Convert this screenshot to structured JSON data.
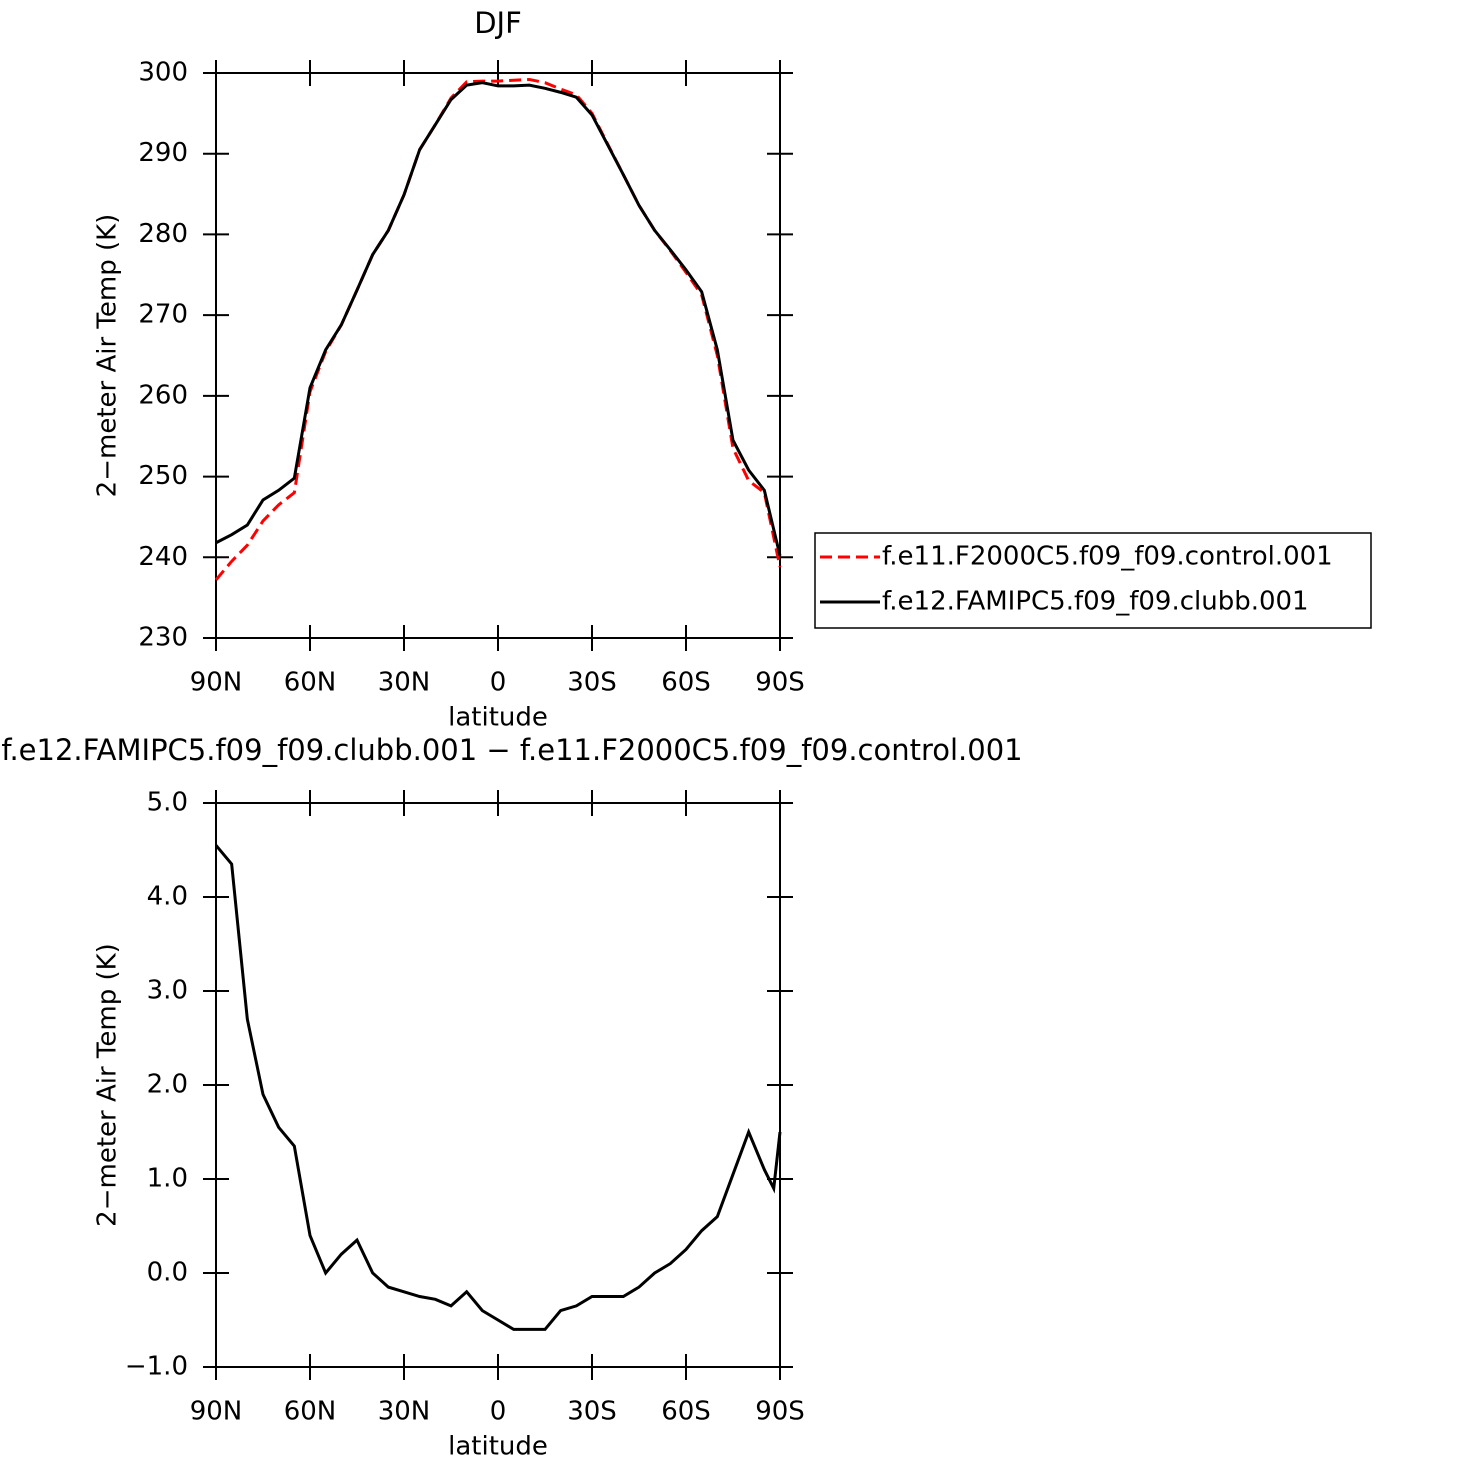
{
  "chart_data": [
    {
      "type": "line",
      "title": "DJF",
      "xlabel": "latitude",
      "ylabel": "2−meter Air Temp (K)",
      "x": [
        90,
        85,
        80,
        75,
        70,
        65,
        60,
        55,
        50,
        45,
        40,
        35,
        30,
        25,
        20,
        15,
        10,
        5,
        0,
        -5,
        -10,
        -15,
        -20,
        -25,
        -30,
        -35,
        -40,
        -45,
        -50,
        -55,
        -60,
        -65,
        -70,
        -75,
        -80,
        -85,
        -90
      ],
      "series": [
        {
          "name": "f.e11.F2000C5.f09_f09.control.001",
          "color": "#ff0000",
          "dash": true,
          "values": [
            237.2,
            239.5,
            241.5,
            244.5,
            246.5,
            248,
            260.5,
            265.5,
            268.8,
            273.1,
            277.5,
            280.5,
            284.9,
            290.5,
            293.6,
            296.9,
            298.9,
            299.0,
            299.0,
            299.1,
            299.2,
            298.8,
            298.0,
            297.3,
            295.0,
            291.2,
            287.4,
            283.6,
            280.5,
            278.0,
            275.3,
            272.5,
            265.0,
            253.5,
            249.5,
            248.0,
            238.8
          ]
        },
        {
          "name": "f.e12.FAMIPC5.f09_f09.clubb.001",
          "color": "#000000",
          "dash": false,
          "values": [
            241.8,
            242.8,
            244.0,
            247.1,
            248.3,
            249.8,
            261.0,
            265.7,
            268.8,
            273.1,
            277.5,
            280.5,
            284.9,
            290.5,
            293.6,
            296.7,
            298.5,
            298.8,
            298.4,
            298.4,
            298.5,
            298.1,
            297.6,
            297.0,
            294.8,
            291.1,
            287.4,
            283.6,
            280.5,
            278.1,
            275.6,
            272.9,
            265.7,
            254.5,
            250.8,
            248.3,
            240.2
          ]
        }
      ],
      "xlim": [
        90,
        -90
      ],
      "xticks": [
        {
          "value": 90,
          "label": "90N"
        },
        {
          "value": 60,
          "label": "60N"
        },
        {
          "value": 30,
          "label": "30N"
        },
        0,
        {
          "value": -30,
          "label": "30S"
        },
        {
          "value": -60,
          "label": "60S"
        },
        {
          "value": -90,
          "label": "90S"
        }
      ],
      "ylim": [
        230,
        300
      ],
      "yticks": [
        230,
        240,
        250,
        260,
        270,
        280,
        290,
        300
      ],
      "legend": "right"
    },
    {
      "type": "line",
      "title": "f.e12.FAMIPC5.f09_f09.clubb.001 − f.e11.F2000C5.f09_f09.control.001",
      "xlabel": "latitude",
      "ylabel": "2−meter Air Temp (K)",
      "x": [
        90,
        85,
        80,
        75,
        70,
        65,
        60,
        55,
        50,
        45,
        40,
        35,
        30,
        25,
        20,
        15,
        10,
        5,
        0,
        -5,
        -10,
        -15,
        -20,
        -25,
        -30,
        -35,
        -40,
        -45,
        -50,
        -55,
        -60,
        -65,
        -70,
        -75,
        -80,
        -85,
        -88,
        -90
      ],
      "series": [
        {
          "color": "#000000",
          "dash": false,
          "values": [
            4.55,
            4.35,
            2.7,
            1.9,
            1.55,
            1.35,
            0.4,
            0.0,
            0.2,
            0.35,
            0.0,
            -0.15,
            -0.2,
            -0.25,
            -0.28,
            -0.35,
            -0.2,
            -0.4,
            -0.5,
            -0.6,
            -0.6,
            -0.6,
            -0.4,
            -0.35,
            -0.25,
            -0.25,
            -0.25,
            -0.15,
            0.0,
            0.1,
            0.25,
            0.45,
            0.6,
            1.05,
            1.5,
            1.1,
            0.9,
            1.5
          ]
        }
      ],
      "xlim": [
        90,
        -90
      ],
      "xticks": [
        {
          "value": 90,
          "label": "90N"
        },
        {
          "value": 60,
          "label": "60N"
        },
        {
          "value": 30,
          "label": "30N"
        },
        0,
        {
          "value": -30,
          "label": "30S"
        },
        {
          "value": -60,
          "label": "60S"
        },
        {
          "value": -90,
          "label": "90S"
        }
      ],
      "ylim": [
        -1,
        5
      ],
      "yticks": [
        {
          "value": -1,
          "label": "−1.0"
        },
        {
          "value": 0,
          "label": "0.0"
        },
        {
          "value": 1,
          "label": "1.0"
        },
        {
          "value": 2,
          "label": "2.0"
        },
        {
          "value": 3,
          "label": "3.0"
        },
        {
          "value": 4,
          "label": "4.0"
        },
        {
          "value": 5,
          "label": "5.0"
        }
      ]
    }
  ]
}
